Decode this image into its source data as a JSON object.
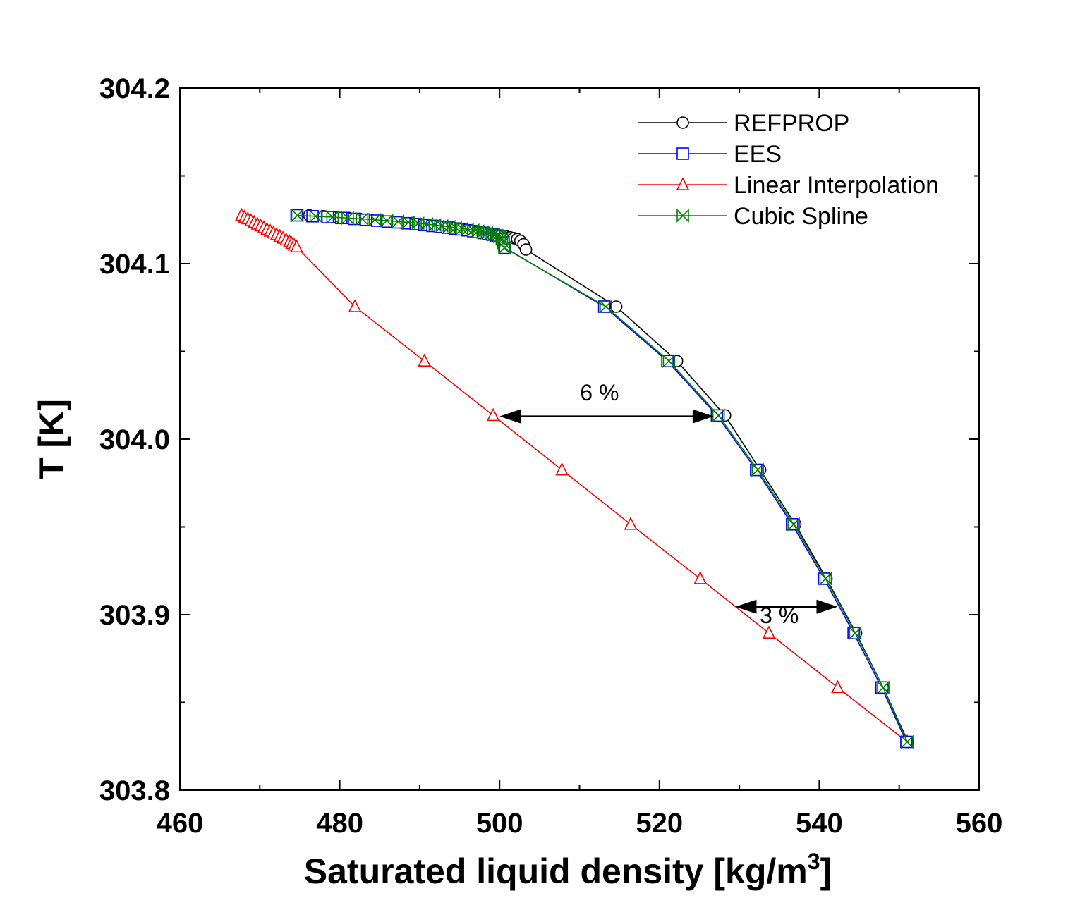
{
  "chart_data": {
    "type": "line",
    "xlabel": "Saturated liquid density [kg/m",
    "xlabel_sup": "3",
    "xlabel_end": "]",
    "ylabel": "T [K]",
    "xlim": [
      460,
      560
    ],
    "ylim": [
      303.8,
      304.2
    ],
    "x_ticks": [
      "460",
      "480",
      "500",
      "520",
      "540",
      "560"
    ],
    "y_ticks": [
      "303.8",
      "303.9",
      "304.0",
      "304.1",
      "304.2"
    ],
    "grid": false,
    "legend_position": "top-right",
    "series": [
      {
        "name": "REFPROP",
        "color": "#000000",
        "marker": "circle",
        "points": [
          [
            476.2,
            304.1275
          ],
          [
            478.0,
            304.127
          ],
          [
            479.6,
            304.1265
          ],
          [
            481.1,
            304.126
          ],
          [
            482.5,
            304.1255
          ],
          [
            483.8,
            304.125
          ],
          [
            485.1,
            304.1245
          ],
          [
            486.3,
            304.124
          ],
          [
            487.5,
            304.1235
          ],
          [
            488.6,
            304.123
          ],
          [
            489.7,
            304.1225
          ],
          [
            490.7,
            304.122
          ],
          [
            491.7,
            304.1215
          ],
          [
            492.7,
            304.121
          ],
          [
            493.6,
            304.1205
          ],
          [
            494.5,
            304.12
          ],
          [
            495.3,
            304.1195
          ],
          [
            496.1,
            304.119
          ],
          [
            496.9,
            304.1185
          ],
          [
            497.6,
            304.118
          ],
          [
            498.3,
            304.1175
          ],
          [
            499.0,
            304.117
          ],
          [
            499.6,
            304.1165
          ],
          [
            500.2,
            304.116
          ],
          [
            500.8,
            304.1155
          ],
          [
            501.3,
            304.115
          ],
          [
            501.8,
            304.1145
          ],
          [
            502.2,
            304.114
          ],
          [
            502.6,
            304.113
          ],
          [
            503.0,
            304.111
          ],
          [
            503.3,
            304.108
          ],
          [
            514.6,
            304.0755
          ],
          [
            522.2,
            304.0445
          ],
          [
            528.2,
            304.0135
          ],
          [
            532.6,
            303.9825
          ],
          [
            537.0,
            303.9515
          ],
          [
            540.9,
            303.9205
          ],
          [
            544.6,
            303.8895
          ],
          [
            548.0,
            303.8585
          ],
          [
            551.1,
            303.8275
          ]
        ]
      },
      {
        "name": "EES",
        "color": "#0000ff",
        "marker": "square",
        "points": [
          [
            474.6,
            304.1275
          ],
          [
            476.6,
            304.127
          ],
          [
            478.5,
            304.1265
          ],
          [
            480.2,
            304.126
          ],
          [
            481.8,
            304.1255
          ],
          [
            483.3,
            304.125
          ],
          [
            484.7,
            304.1245
          ],
          [
            486.0,
            304.124
          ],
          [
            487.2,
            304.1235
          ],
          [
            488.4,
            304.123
          ],
          [
            489.5,
            304.1225
          ],
          [
            490.6,
            304.122
          ],
          [
            491.6,
            304.1215
          ],
          [
            492.6,
            304.121
          ],
          [
            493.5,
            304.1205
          ],
          [
            494.4,
            304.12
          ],
          [
            495.2,
            304.1195
          ],
          [
            496.0,
            304.119
          ],
          [
            496.7,
            304.1185
          ],
          [
            497.4,
            304.118
          ],
          [
            498.0,
            304.1175
          ],
          [
            498.6,
            304.117
          ],
          [
            499.1,
            304.1165
          ],
          [
            499.6,
            304.116
          ],
          [
            500.0,
            304.1155
          ],
          [
            500.3,
            304.114
          ],
          [
            500.5,
            304.112
          ],
          [
            500.7,
            304.109
          ],
          [
            513.1,
            304.0755
          ],
          [
            521.0,
            304.0445
          ],
          [
            527.2,
            304.0135
          ],
          [
            532.1,
            303.9825
          ],
          [
            536.6,
            303.9515
          ],
          [
            540.6,
            303.9205
          ],
          [
            544.3,
            303.8895
          ],
          [
            547.8,
            303.8585
          ],
          [
            550.9,
            303.8275
          ]
        ]
      },
      {
        "name": "Linear Interpolation",
        "color": "#ff0000",
        "marker": "triangle",
        "points": [
          [
            467.7,
            304.1275
          ],
          [
            468.1,
            304.1265
          ],
          [
            468.5,
            304.1255
          ],
          [
            468.9,
            304.1245
          ],
          [
            469.3,
            304.1235
          ],
          [
            469.7,
            304.1225
          ],
          [
            470.1,
            304.1215
          ],
          [
            470.5,
            304.1205
          ],
          [
            470.9,
            304.1195
          ],
          [
            471.3,
            304.1185
          ],
          [
            471.7,
            304.1175
          ],
          [
            472.1,
            304.1165
          ],
          [
            472.5,
            304.1155
          ],
          [
            472.9,
            304.1145
          ],
          [
            473.3,
            304.1135
          ],
          [
            473.7,
            304.1125
          ],
          [
            474.0,
            304.1115
          ],
          [
            474.3,
            304.1105
          ],
          [
            474.6,
            304.1095
          ],
          [
            481.9,
            304.0755
          ],
          [
            490.6,
            304.0445
          ],
          [
            499.2,
            304.0135
          ],
          [
            507.8,
            303.9825
          ],
          [
            516.4,
            303.9515
          ],
          [
            525.1,
            303.9205
          ],
          [
            533.7,
            303.8895
          ],
          [
            542.3,
            303.8585
          ],
          [
            551.0,
            303.8275
          ]
        ]
      },
      {
        "name": "Cubic Spline",
        "color": "#008000",
        "marker": "bowtie",
        "points": [
          [
            474.7,
            304.1275
          ],
          [
            477.0,
            304.127
          ],
          [
            479.1,
            304.1265
          ],
          [
            481.0,
            304.126
          ],
          [
            482.8,
            304.1255
          ],
          [
            484.4,
            304.125
          ],
          [
            485.9,
            304.1245
          ],
          [
            487.3,
            304.124
          ],
          [
            488.6,
            304.1235
          ],
          [
            489.8,
            304.123
          ],
          [
            490.9,
            304.1225
          ],
          [
            491.9,
            304.122
          ],
          [
            492.8,
            304.1215
          ],
          [
            493.7,
            304.121
          ],
          [
            494.5,
            304.1205
          ],
          [
            495.3,
            304.12
          ],
          [
            496.0,
            304.1195
          ],
          [
            496.7,
            304.119
          ],
          [
            497.3,
            304.1185
          ],
          [
            497.9,
            304.118
          ],
          [
            498.4,
            304.1175
          ],
          [
            498.9,
            304.117
          ],
          [
            499.3,
            304.1165
          ],
          [
            499.7,
            304.116
          ],
          [
            500.0,
            304.1155
          ],
          [
            500.3,
            304.114
          ],
          [
            500.5,
            304.112
          ],
          [
            500.6,
            304.109
          ],
          [
            513.3,
            304.0755
          ],
          [
            521.2,
            304.0445
          ],
          [
            527.4,
            304.0135
          ],
          [
            532.3,
            303.9825
          ],
          [
            536.8,
            303.9515
          ],
          [
            540.8,
            303.9205
          ],
          [
            544.5,
            303.8895
          ],
          [
            548.0,
            303.8585
          ],
          [
            551.0,
            303.8275
          ]
        ]
      }
    ],
    "annotations": [
      {
        "text": "6 %",
        "label_x": 512.5,
        "label_y": 304.027,
        "arrow_from": [
          500.0,
          304.013
        ],
        "arrow_to": [
          526.8,
          304.013
        ]
      },
      {
        "text": "3 %",
        "label_x": 535.0,
        "label_y": 303.9,
        "arrow_from": [
          529.5,
          303.9045
        ],
        "arrow_to": [
          542.3,
          303.9045
        ]
      }
    ]
  }
}
